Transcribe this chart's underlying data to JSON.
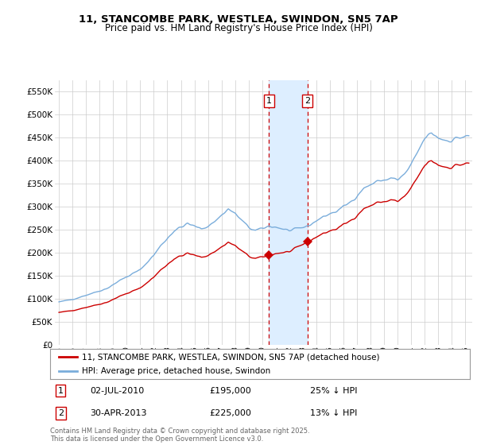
{
  "title1": "11, STANCOMBE PARK, WESTLEA, SWINDON, SN5 7AP",
  "title2": "Price paid vs. HM Land Registry's House Price Index (HPI)",
  "ylabel_ticks": [
    "£0",
    "£50K",
    "£100K",
    "£150K",
    "£200K",
    "£250K",
    "£300K",
    "£350K",
    "£400K",
    "£450K",
    "£500K",
    "£550K"
  ],
  "ytick_vals": [
    0,
    50000,
    100000,
    150000,
    200000,
    250000,
    300000,
    350000,
    400000,
    450000,
    500000,
    550000
  ],
  "ylim": [
    0,
    575000
  ],
  "hpi_color": "#7aaddb",
  "price_color": "#cc0000",
  "legend_label_price": "11, STANCOMBE PARK, WESTLEA, SWINDON, SN5 7AP (detached house)",
  "legend_label_hpi": "HPI: Average price, detached house, Swindon",
  "sale1_date": "02-JUL-2010",
  "sale1_price": 195000,
  "sale1_note": "25% ↓ HPI",
  "sale1_year": 2010.5,
  "sale2_date": "30-APR-2013",
  "sale2_price": 225000,
  "sale2_note": "13% ↓ HPI",
  "sale2_year": 2013.33,
  "footnote": "Contains HM Land Registry data © Crown copyright and database right 2025.\nThis data is licensed under the Open Government Licence v3.0.",
  "background_color": "#ffffff",
  "grid_color": "#cccccc",
  "span_color": "#ddeeff"
}
